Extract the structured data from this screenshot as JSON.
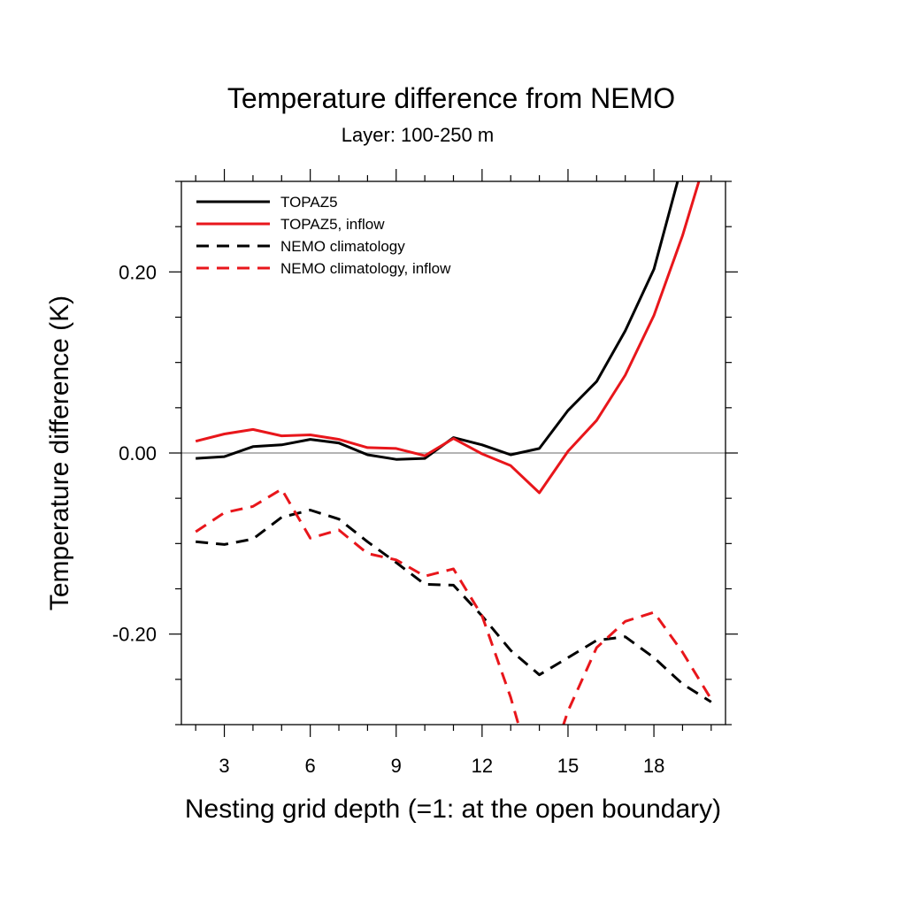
{
  "chart_data": {
    "type": "line",
    "title": "Temperature difference from NEMO",
    "subtitle": "Layer: 100-250 m",
    "xlabel": "Nesting grid depth (=1: at the open boundary)",
    "ylabel": "Temperature difference (K)",
    "xlim": [
      1.5,
      20.5
    ],
    "ylim": [
      -0.3,
      0.3
    ],
    "x_ticks": [
      3,
      6,
      9,
      12,
      15,
      18
    ],
    "x_tick_labels": [
      "3",
      "6",
      "9",
      "12",
      "15",
      "18"
    ],
    "y_ticks": [
      0.2,
      0.0,
      -0.2
    ],
    "y_tick_labels": [
      "0.20",
      "0.00",
      "-0.20"
    ],
    "zero_line": true,
    "grid": false,
    "legend_position": "top-left",
    "x": [
      2,
      3,
      4,
      5,
      6,
      7,
      8,
      9,
      10,
      11,
      12,
      13,
      14,
      15,
      16,
      17,
      18,
      19,
      20
    ],
    "series": [
      {
        "name": "TOPAZ5",
        "color": "#000000",
        "dash": "solid",
        "values": [
          -0.006,
          -0.004,
          0.007,
          0.009,
          0.015,
          0.011,
          -0.002,
          -0.007,
          -0.006,
          0.017,
          0.009,
          -0.002,
          0.005,
          0.047,
          0.079,
          0.135,
          0.203,
          0.32,
          0.45
        ]
      },
      {
        "name": "TOPAZ5, inflow",
        "color": "#e8161b",
        "dash": "solid",
        "values": [
          0.013,
          0.021,
          0.026,
          0.019,
          0.02,
          0.015,
          0.006,
          0.005,
          -0.003,
          0.016,
          -0.001,
          -0.014,
          -0.044,
          0.002,
          0.036,
          0.086,
          0.152,
          0.24,
          0.345
        ]
      },
      {
        "name": "NEMO climatology",
        "color": "#000000",
        "dash": "dashed",
        "values": [
          -0.098,
          -0.101,
          -0.095,
          -0.071,
          -0.063,
          -0.073,
          -0.098,
          -0.121,
          -0.145,
          -0.146,
          -0.18,
          -0.218,
          -0.245,
          -0.226,
          -0.207,
          -0.203,
          -0.226,
          -0.255,
          -0.275
        ]
      },
      {
        "name": "NEMO climatology, inflow",
        "color": "#e8161b",
        "dash": "dashed",
        "values": [
          -0.087,
          -0.066,
          -0.059,
          -0.04,
          -0.094,
          -0.085,
          -0.111,
          -0.118,
          -0.136,
          -0.128,
          -0.18,
          -0.27,
          -0.38,
          -0.285,
          -0.215,
          -0.186,
          -0.176,
          -0.22,
          -0.272
        ]
      }
    ]
  }
}
